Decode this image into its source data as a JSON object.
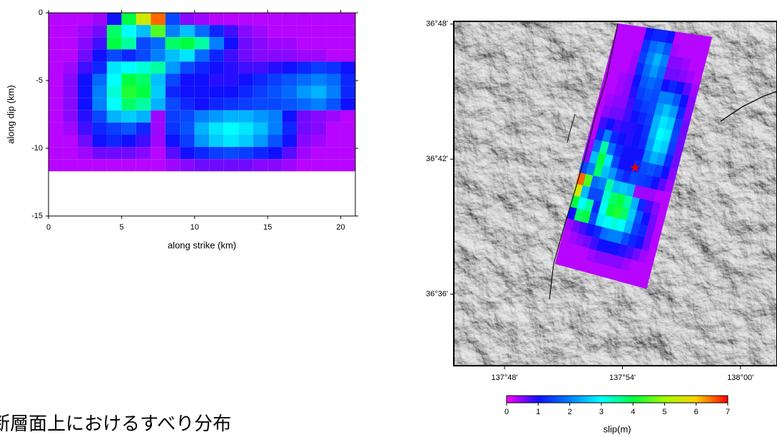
{
  "chart_data": [
    {
      "type": "heatmap",
      "xlabel": "along strike (km)",
      "ylabel": "along dip (km)",
      "xlim": [
        0,
        21
      ],
      "ylim": [
        -15,
        0
      ],
      "xticks": [
        0,
        5,
        10,
        15,
        20
      ],
      "yticks": [
        0,
        -5,
        -10,
        -15
      ],
      "x_edges": [
        0,
        1,
        2,
        3,
        4,
        5,
        6,
        7,
        8,
        9,
        10,
        11,
        12,
        13,
        14,
        15,
        16,
        17,
        18,
        19,
        20,
        21
      ],
      "y_edges": [
        0,
        -0.9,
        -1.8,
        -2.7,
        -3.6,
        -4.5,
        -5.4,
        -6.3,
        -7.2,
        -8.1,
        -9,
        -9.9,
        -10.8,
        -11.7
      ],
      "values": [
        [
          0.3,
          0.3,
          0.3,
          0.4,
          1.0,
          4.0,
          5.5,
          6.5,
          1.5,
          0.5,
          0.4,
          0.3,
          0.3,
          0.3,
          0.3,
          0.3,
          0.3,
          0.3,
          0.3,
          0.3,
          0.3
        ],
        [
          0.3,
          0.3,
          0.4,
          0.6,
          3.8,
          3.0,
          2.5,
          4.5,
          2.0,
          2.5,
          1.8,
          1.2,
          0.8,
          0.5,
          0.4,
          0.3,
          0.3,
          0.3,
          0.3,
          0.3,
          0.3
        ],
        [
          0.3,
          0.3,
          0.5,
          0.8,
          4.0,
          3.5,
          1.5,
          1.8,
          3.8,
          4.0,
          3.5,
          2.0,
          1.0,
          0.6,
          0.5,
          0.4,
          0.4,
          0.3,
          0.3,
          0.3,
          0.3
        ],
        [
          0.3,
          0.3,
          0.6,
          1.0,
          1.5,
          1.2,
          1.5,
          2.0,
          2.5,
          2.8,
          1.8,
          1.2,
          0.8,
          0.6,
          0.5,
          0.5,
          0.5,
          0.4,
          0.4,
          0.3,
          0.3
        ],
        [
          0.3,
          0.4,
          0.8,
          1.2,
          2.8,
          3.0,
          3.2,
          3.5,
          2.2,
          1.5,
          1.2,
          1.0,
          0.9,
          0.8,
          0.8,
          0.9,
          1.0,
          1.2,
          1.4,
          1.3,
          1.0
        ],
        [
          0.3,
          0.5,
          1.0,
          1.8,
          3.0,
          4.0,
          3.8,
          2.5,
          1.5,
          1.0,
          1.0,
          0.9,
          0.9,
          1.0,
          1.2,
          1.4,
          1.6,
          1.8,
          2.0,
          1.8,
          1.2
        ],
        [
          0.3,
          0.5,
          1.0,
          2.0,
          3.2,
          4.2,
          4.0,
          2.6,
          1.2,
          1.0,
          1.0,
          1.0,
          1.0,
          1.2,
          1.4,
          1.6,
          1.8,
          2.2,
          2.4,
          2.0,
          1.2
        ],
        [
          0.3,
          0.5,
          1.0,
          2.0,
          3.0,
          3.8,
          3.5,
          2.4,
          1.5,
          1.2,
          1.0,
          1.2,
          1.3,
          1.4,
          1.5,
          1.5,
          1.6,
          1.8,
          2.0,
          1.6,
          1.0
        ],
        [
          0.3,
          0.5,
          0.9,
          1.5,
          2.4,
          2.6,
          2.4,
          0.4,
          1.4,
          1.5,
          2.0,
          2.2,
          2.4,
          2.4,
          2.2,
          2.0,
          1.0,
          0.6,
          0.5,
          0.4,
          0.3
        ],
        [
          0.3,
          0.4,
          0.8,
          1.2,
          1.4,
          1.6,
          1.2,
          0.4,
          1.3,
          1.6,
          2.4,
          2.8,
          3.0,
          2.8,
          2.5,
          2.0,
          1.2,
          0.6,
          0.5,
          0.3,
          0.3
        ],
        [
          0.3,
          0.3,
          0.6,
          1.0,
          1.2,
          1.0,
          0.8,
          0.4,
          1.0,
          1.4,
          2.2,
          2.6,
          2.8,
          2.6,
          2.2,
          1.6,
          1.0,
          0.5,
          0.4,
          0.3,
          0.3
        ],
        [
          0.3,
          0.3,
          0.4,
          0.6,
          0.6,
          0.6,
          0.5,
          0.3,
          0.7,
          1.0,
          1.2,
          1.4,
          1.5,
          1.4,
          1.2,
          1.0,
          0.7,
          0.4,
          0.3,
          0.3,
          0.3
        ],
        [
          0.3,
          0.3,
          0.3,
          0.3,
          0.3,
          0.3,
          0.3,
          0.3,
          0.4,
          0.5,
          0.6,
          0.6,
          0.6,
          0.6,
          0.5,
          0.5,
          0.4,
          0.3,
          0.3,
          0.3,
          0.3
        ]
      ]
    },
    {
      "type": "map",
      "xlim": [
        137.757,
        138.031
      ],
      "ylim": [
        36.547,
        36.802
      ],
      "xticks": [
        {
          "value": 137.8,
          "label": "137°48'"
        },
        {
          "value": 137.9,
          "label": "137°54'"
        },
        {
          "value": 138.0,
          "label": "138°00'"
        }
      ],
      "yticks": [
        {
          "value": 36.8,
          "label": "36°48'"
        },
        {
          "value": 36.7,
          "label": "36°42'"
        },
        {
          "value": 36.6,
          "label": "36°36'"
        }
      ],
      "colorbar": {
        "label": "slip(m)",
        "clim": [
          0,
          7
        ],
        "ticks": [
          0,
          1,
          2,
          3,
          4,
          5,
          6,
          7
        ],
        "colors": [
          "#ff00ff",
          "#1010ff",
          "#0080ff",
          "#00ffff",
          "#00ff40",
          "#a0ff00",
          "#ffd000",
          "#ff0000"
        ]
      }
    }
  ],
  "caption": "断層面上におけるすべり分布"
}
